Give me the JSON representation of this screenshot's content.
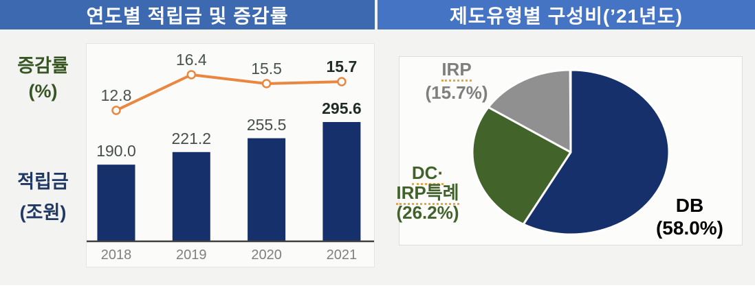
{
  "left_panel": {
    "title": "연도별 적립금 및 증감률",
    "y_axis_top": {
      "line1": "증감률",
      "line2": "(%)"
    },
    "y_axis_bottom": {
      "line1": "적립금",
      "line2": "(조원)"
    }
  },
  "right_panel": {
    "title": "제도유형별 구성비(’21년도)"
  },
  "colors": {
    "header_left_blue": "#3c69b0",
    "header_right_blue": "#4674c4",
    "bar_navy": "#16306b",
    "line_orange": "#e9863f",
    "pie_navy": "#16306b",
    "pie_green": "#42632a",
    "pie_gray": "#909090",
    "growth_label_green": "#375623",
    "reserve_label_navy": "#1f3864",
    "axis_line": "#3f3f3f"
  },
  "chart_data": [
    {
      "type": "bar",
      "subtype": "bar+line combo",
      "title": "연도별 적립금 및 증감률",
      "categories": [
        "2018",
        "2019",
        "2020",
        "2021"
      ],
      "series": [
        {
          "name": "적립금(조원)",
          "type": "bar",
          "values": [
            190.0,
            221.2,
            255.5,
            295.6
          ],
          "labels": [
            "190.0",
            "221.2",
            "255.5",
            "295.6"
          ],
          "color": "#16306b"
        },
        {
          "name": "증감률(%)",
          "type": "line",
          "values": [
            12.8,
            16.4,
            15.5,
            15.7
          ],
          "labels": [
            "12.8",
            "16.4",
            "15.5",
            "15.7"
          ],
          "color": "#e9863f",
          "marker": "open-circle"
        }
      ],
      "emphasized_category": "2021",
      "grid": false,
      "legend": false
    },
    {
      "type": "pie",
      "title": "제도유형별 구성비(’21년도)",
      "start_angle": "12-oclock",
      "direction": "clockwise",
      "slices": [
        {
          "name": "DB",
          "pct": 58.0,
          "color": "#16306b",
          "label_line1": "DB",
          "label_line2": "(58.0%)"
        },
        {
          "name": "DC·IRP특례",
          "pct": 26.2,
          "color": "#42632a",
          "label_line1": "DC·",
          "label_line2": "IRP특례",
          "label_line3": "(26.2%)"
        },
        {
          "name": "IRP",
          "pct": 15.7,
          "color": "#909090",
          "label_line1": "IRP",
          "label_line2": "(15.7%)"
        }
      ]
    }
  ]
}
